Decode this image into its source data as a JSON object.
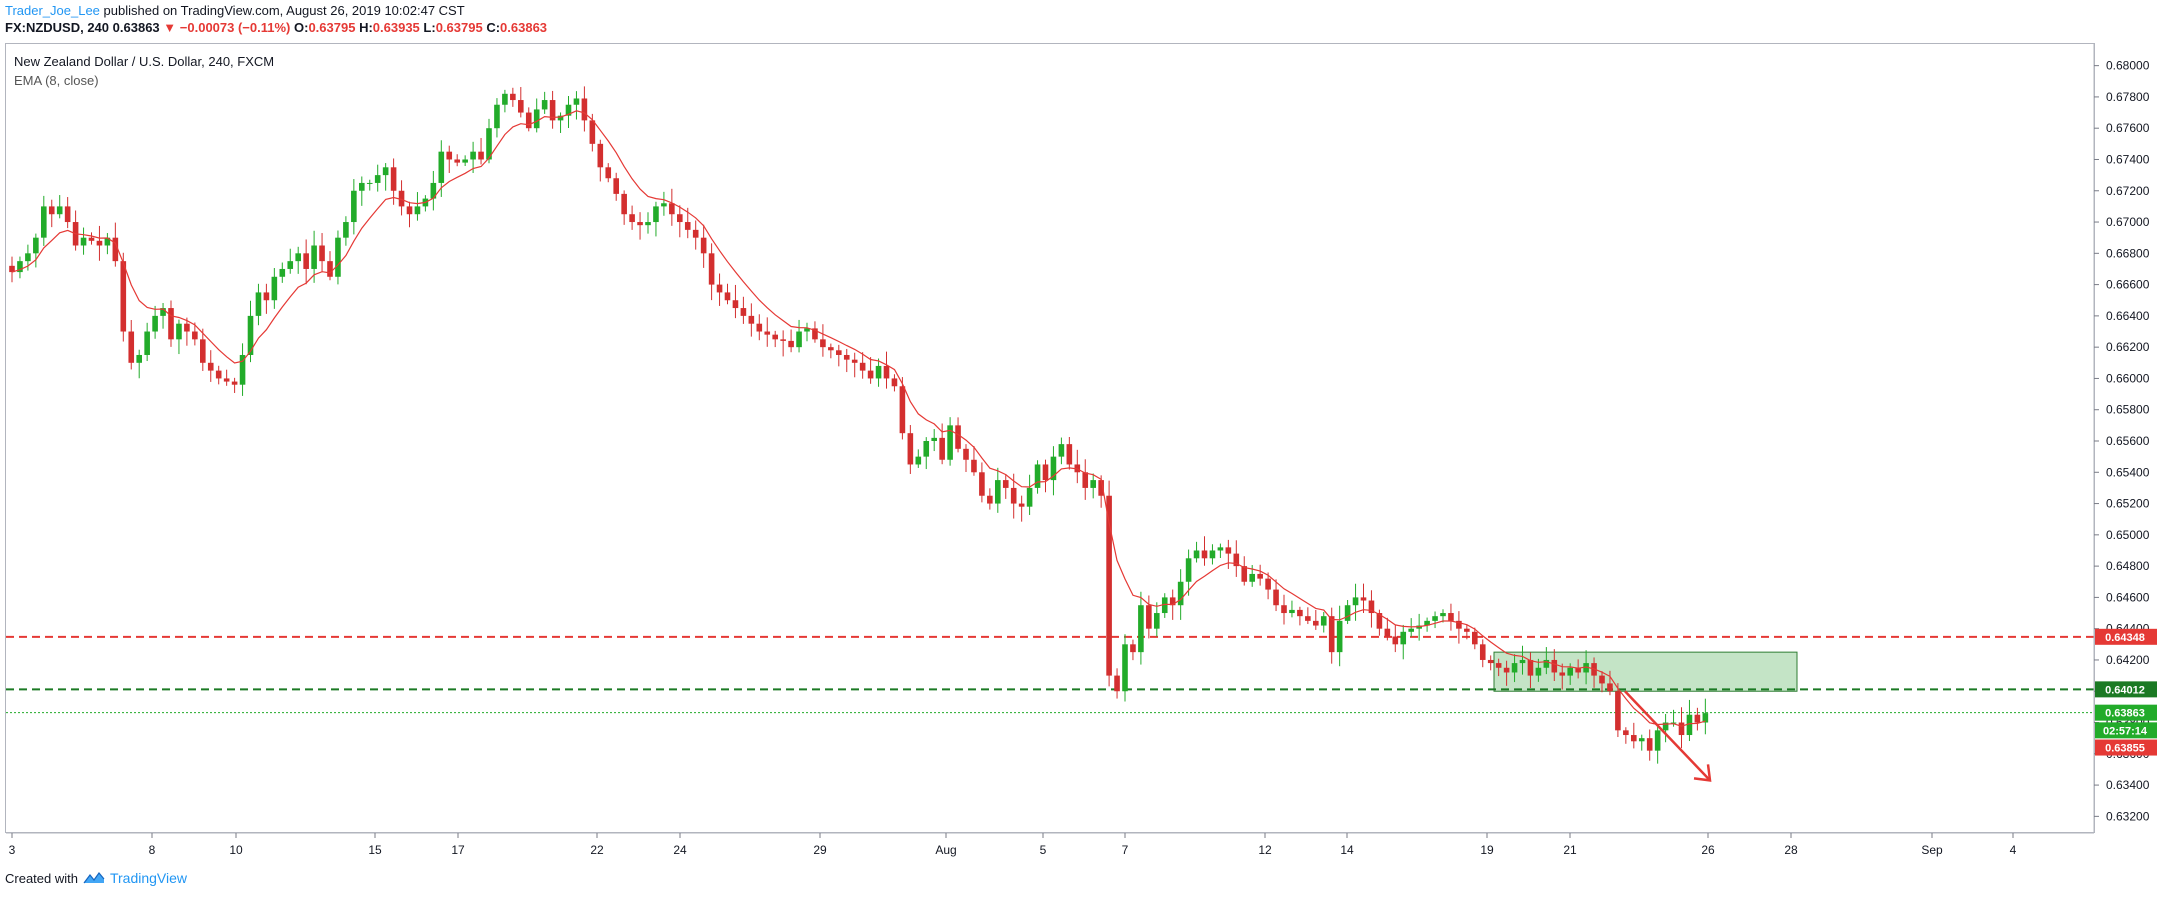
{
  "header": {
    "author": "Trader_Joe_Lee",
    "published": "published on TradingView.com, August 26, 2019 10:02:47 CST"
  },
  "ticker": {
    "symbol": "FX:NZDUSD, 240",
    "last": "0.63863",
    "change_arrow": "▼",
    "change": "−0.00073 (−0.11%)",
    "o_label": "O:",
    "o": "0.63795",
    "h_label": "H:",
    "h": "0.63935",
    "l_label": "L:",
    "l": "0.63795",
    "c_label": "C:",
    "c": "0.63863"
  },
  "legend": {
    "title": "New Zealand Dollar / U.S. Dollar, 240, FXCM",
    "indicator": "EMA (8, close)"
  },
  "footer": {
    "created_with": "Created with",
    "brand": "TradingView",
    "logo_icon": "tradingview-logo-icon"
  },
  "colors": {
    "up": "#22ab2a",
    "down": "#d32f2f",
    "ema": "#e53935",
    "resistance": "#e53935",
    "support": "#1b7a24",
    "zone_fill": "#a5d6a7",
    "arrow": "#e53935"
  },
  "chart_data": {
    "type": "candlestick",
    "title": "New Zealand Dollar / U.S. Dollar, 240, FXCM",
    "indicator": "EMA (8, close)",
    "ylim": [
      0.631,
      0.681
    ],
    "y_ticks": [
      "0.68000",
      "0.67800",
      "0.67600",
      "0.67400",
      "0.67200",
      "0.67000",
      "0.66800",
      "0.66600",
      "0.66400",
      "0.66200",
      "0.66000",
      "0.65800",
      "0.65600",
      "0.65400",
      "0.65200",
      "0.65000",
      "0.64800",
      "0.64600",
      "0.64400",
      "0.64200",
      "0.64000",
      "0.63800",
      "0.63600",
      "0.63400",
      "0.63200"
    ],
    "x_labels": [
      "3",
      "8",
      "10",
      "15",
      "17",
      "22",
      "24",
      "29",
      "Aug",
      "5",
      "7",
      "12",
      "14",
      "19",
      "21",
      "26",
      "28",
      "Sep",
      "4"
    ],
    "price_tags": [
      {
        "label": "0.64348",
        "value": 0.64348,
        "color": "#e53935"
      },
      {
        "label": "0.64012",
        "value": 0.64012,
        "color": "#1b7a24"
      },
      {
        "label": "0.63863",
        "value": 0.63863,
        "color": "#22ab2a"
      },
      {
        "label": "02:57:14",
        "value": 0.6375,
        "color": "#22ab2a"
      },
      {
        "label": "0.63855",
        "value": 0.6364,
        "color": "#e53935"
      }
    ],
    "horizontal_lines": [
      {
        "name": "resistance",
        "value": 0.64348,
        "style": "dashed",
        "color": "#e53935"
      },
      {
        "name": "support",
        "value": 0.64012,
        "style": "dashed",
        "color": "#1b7a24"
      },
      {
        "name": "last-price",
        "value": 0.63863,
        "style": "dotted",
        "color": "#22ab2a"
      }
    ],
    "zone": {
      "y_top": 0.6425,
      "y_bottom": 0.64
    },
    "closes": [
      0.6668,
      0.6675,
      0.668,
      0.669,
      0.671,
      0.6705,
      0.671,
      0.67,
      0.6685,
      0.669,
      0.6688,
      0.6685,
      0.669,
      0.6675,
      0.663,
      0.661,
      0.6615,
      0.663,
      0.664,
      0.6645,
      0.6625,
      0.6635,
      0.663,
      0.6625,
      0.661,
      0.6605,
      0.66,
      0.6598,
      0.6596,
      0.6615,
      0.664,
      0.6655,
      0.665,
      0.6665,
      0.667,
      0.6675,
      0.668,
      0.667,
      0.6685,
      0.6675,
      0.6665,
      0.669,
      0.67,
      0.672,
      0.6725,
      0.6725,
      0.673,
      0.6735,
      0.672,
      0.671,
      0.6705,
      0.671,
      0.6715,
      0.6725,
      0.6745,
      0.674,
      0.6738,
      0.674,
      0.6745,
      0.674,
      0.676,
      0.6775,
      0.6782,
      0.6778,
      0.677,
      0.676,
      0.6772,
      0.6778,
      0.6765,
      0.6768,
      0.6775,
      0.6779,
      0.6765,
      0.675,
      0.6735,
      0.6728,
      0.6718,
      0.6705,
      0.67,
      0.6698,
      0.67,
      0.671,
      0.6712,
      0.6705,
      0.67,
      0.6695,
      0.669,
      0.668,
      0.666,
      0.6655,
      0.665,
      0.6645,
      0.664,
      0.6635,
      0.663,
      0.6628,
      0.6625,
      0.6624,
      0.662,
      0.663,
      0.6632,
      0.6625,
      0.662,
      0.6618,
      0.6615,
      0.6612,
      0.661,
      0.6605,
      0.66,
      0.6608,
      0.66,
      0.6595,
      0.6565,
      0.6545,
      0.655,
      0.656,
      0.6562,
      0.6548,
      0.657,
      0.6555,
      0.6548,
      0.654,
      0.6525,
      0.652,
      0.6535,
      0.653,
      0.652,
      0.6518,
      0.653,
      0.6545,
      0.6535,
      0.655,
      0.6558,
      0.6545,
      0.654,
      0.653,
      0.6535,
      0.6525,
      0.641,
      0.64,
      0.643,
      0.6425,
      0.6455,
      0.644,
      0.645,
      0.646,
      0.6455,
      0.647,
      0.6485,
      0.649,
      0.6485,
      0.649,
      0.6492,
      0.6488,
      0.648,
      0.647,
      0.6475,
      0.6472,
      0.6465,
      0.6455,
      0.645,
      0.6452,
      0.6448,
      0.6445,
      0.6442,
      0.6448,
      0.6425,
      0.6445,
      0.6455,
      0.646,
      0.6458,
      0.645,
      0.644,
      0.6435,
      0.643,
      0.6438,
      0.644,
      0.6442,
      0.6445,
      0.6448,
      0.645,
      0.6445,
      0.644,
      0.6438,
      0.643,
      0.642,
      0.6418,
      0.6415,
      0.6412,
      0.6418,
      0.642,
      0.641,
      0.6415,
      0.642,
      0.6412,
      0.641,
      0.6415,
      0.6412,
      0.6418,
      0.641,
      0.6405,
      0.64,
      0.6375,
      0.6372,
      0.6368,
      0.637,
      0.6362,
      0.6375,
      0.638,
      0.638,
      0.6372,
      0.6385,
      0.638,
      0.6386
    ]
  }
}
